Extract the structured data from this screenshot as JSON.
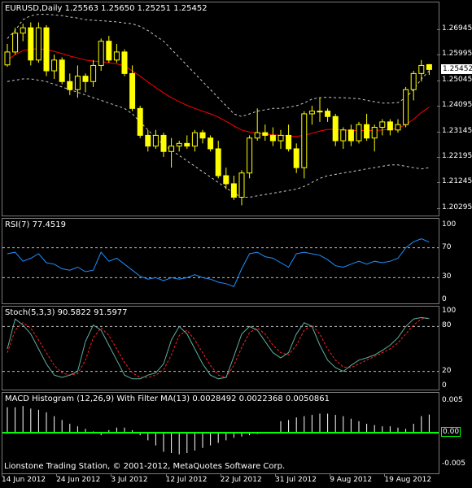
{
  "main": {
    "title": "EURUSD,Daily  1.25563 1.25650 1.25251 1.25452",
    "price_ticks": [
      "1.26945",
      "1.25995",
      "1.25045",
      "1.24095",
      "1.23145",
      "1.22195",
      "1.21245",
      "1.20295"
    ],
    "current_price": "1.25452"
  },
  "rsi": {
    "title": "RSI(7) 77.4519",
    "ticks": [
      "100",
      "70",
      "30",
      "0"
    ]
  },
  "stoch": {
    "title": "Stoch(5,3,3) 90.5822 91.5977",
    "ticks": [
      "100",
      "80",
      "20",
      "0"
    ]
  },
  "macd": {
    "title": "MACD Histogram (12,26,9) With Filter MA(13) 0.0028492 0.0022368 0.0050861",
    "ticks": [
      "0.005",
      "0.00",
      "-0.005"
    ]
  },
  "footer": "Lionstone Trading Station, © 2001-2012, MetaQuotes Software Corp.",
  "dates": [
    "14 Jun 2012",
    "24 Jun 2012",
    "3 Jul 2012",
    "12 Jul 2012",
    "22 Jul 2012",
    "31 Jul 2012",
    "9 Aug 2012",
    "19 Aug 2012"
  ],
  "colors": {
    "bg": "#000000",
    "candle": "#ffff00",
    "ma": "#ff0000",
    "bands": "#c8c8c8",
    "rsi": "#1e90ff",
    "stoch_main": "#5fb0a0",
    "stoch_signal": "#ff2020",
    "macd_hist": "#ffffff",
    "macd_zero": "#00ff00"
  },
  "chart_data": [
    {
      "type": "candlestick",
      "title": "EURUSD,Daily  1.25563 1.25650 1.25251 1.25452",
      "ylim": [
        1.202,
        1.277
      ],
      "x": [
        "14 Jun 2012",
        "24 Jun 2012",
        "3 Jul 2012",
        "12 Jul 2012",
        "22 Jul 2012",
        "31 Jul 2012",
        "9 Aug 2012",
        "19 Aug 2012"
      ],
      "ohlc": [
        [
          1.2562,
          1.264,
          1.2555,
          1.261
        ],
        [
          1.261,
          1.27,
          1.26,
          1.268
        ],
        [
          1.268,
          1.2715,
          1.265,
          1.27
        ],
        [
          1.27,
          1.272,
          1.256,
          1.258
        ],
        [
          1.258,
          1.272,
          1.257,
          1.27
        ],
        [
          1.27,
          1.271,
          1.252,
          1.254
        ],
        [
          1.254,
          1.26,
          1.251,
          1.258
        ],
        [
          1.258,
          1.259,
          1.249,
          1.25
        ],
        [
          1.25,
          1.253,
          1.245,
          1.247
        ],
        [
          1.247,
          1.256,
          1.244,
          1.252
        ],
        [
          1.252,
          1.253,
          1.246,
          1.25
        ],
        [
          1.25,
          1.258,
          1.248,
          1.256
        ],
        [
          1.256,
          1.266,
          1.254,
          1.265
        ],
        [
          1.265,
          1.267,
          1.257,
          1.258
        ],
        [
          1.258,
          1.264,
          1.257,
          1.261
        ],
        [
          1.261,
          1.262,
          1.252,
          1.253
        ],
        [
          1.253,
          1.256,
          1.239,
          1.24
        ],
        [
          1.24,
          1.241,
          1.229,
          1.23
        ],
        [
          1.23,
          1.232,
          1.224,
          1.226
        ],
        [
          1.226,
          1.232,
          1.225,
          1.23
        ],
        [
          1.23,
          1.231,
          1.222,
          1.224
        ],
        [
          1.224,
          1.229,
          1.218,
          1.226
        ],
        [
          1.226,
          1.228,
          1.224,
          1.227
        ],
        [
          1.227,
          1.23,
          1.225,
          1.226
        ],
        [
          1.226,
          1.232,
          1.224,
          1.231
        ],
        [
          1.231,
          1.232,
          1.227,
          1.229
        ],
        [
          1.229,
          1.23,
          1.224,
          1.225
        ],
        [
          1.225,
          1.228,
          1.214,
          1.215
        ],
        [
          1.215,
          1.218,
          1.21,
          1.212
        ],
        [
          1.212,
          1.215,
          1.206,
          1.207
        ],
        [
          1.207,
          1.217,
          1.204,
          1.216
        ],
        [
          1.216,
          1.23,
          1.214,
          1.229
        ],
        [
          1.229,
          1.24,
          1.228,
          1.231
        ],
        [
          1.231,
          1.234,
          1.228,
          1.23
        ],
        [
          1.23,
          1.233,
          1.226,
          1.228
        ],
        [
          1.228,
          1.232,
          1.225,
          1.23
        ],
        [
          1.23,
          1.234,
          1.224,
          1.225
        ],
        [
          1.225,
          1.227,
          1.216,
          1.218
        ],
        [
          1.218,
          1.239,
          1.214,
          1.238
        ],
        [
          1.238,
          1.241,
          1.234,
          1.239
        ],
        [
          1.239,
          1.244,
          1.235,
          1.239
        ],
        [
          1.239,
          1.24,
          1.235,
          1.237
        ],
        [
          1.237,
          1.238,
          1.226,
          1.228
        ],
        [
          1.228,
          1.233,
          1.225,
          1.232
        ],
        [
          1.232,
          1.234,
          1.226,
          1.228
        ],
        [
          1.228,
          1.235,
          1.227,
          1.234
        ],
        [
          1.234,
          1.238,
          1.228,
          1.229
        ],
        [
          1.229,
          1.234,
          1.224,
          1.233
        ],
        [
          1.233,
          1.236,
          1.23,
          1.235
        ],
        [
          1.235,
          1.236,
          1.23,
          1.232
        ],
        [
          1.232,
          1.236,
          1.231,
          1.234
        ],
        [
          1.234,
          1.248,
          1.233,
          1.247
        ],
        [
          1.247,
          1.254,
          1.243,
          1.253
        ],
        [
          1.253,
          1.258,
          1.25,
          1.256
        ],
        [
          1.2563,
          1.2565,
          1.2525,
          1.2545
        ]
      ],
      "ma": [
        1.258,
        1.26,
        1.2615,
        1.262,
        1.2622,
        1.2618,
        1.2612,
        1.2604,
        1.2595,
        1.2588,
        1.258,
        1.2576,
        1.2574,
        1.257,
        1.2566,
        1.2558,
        1.254,
        1.252,
        1.2498,
        1.2478,
        1.2458,
        1.244,
        1.2425,
        1.2412,
        1.24,
        1.239,
        1.238,
        1.2368,
        1.2352,
        1.2335,
        1.232,
        1.2312,
        1.2308,
        1.2305,
        1.2302,
        1.23,
        1.2298,
        1.2296,
        1.23,
        1.2308,
        1.2316,
        1.2322,
        1.2322,
        1.232,
        1.2318,
        1.2318,
        1.2318,
        1.2318,
        1.232,
        1.2322,
        1.2326,
        1.234,
        1.236,
        1.2385,
        1.2405
      ],
      "band_upper": [
        1.266,
        1.269,
        1.273,
        1.2745,
        1.275,
        1.275,
        1.2748,
        1.2745,
        1.274,
        1.2736,
        1.273,
        1.2728,
        1.2726,
        1.2724,
        1.2722,
        1.2718,
        1.2715,
        1.2705,
        1.269,
        1.267,
        1.265,
        1.262,
        1.259,
        1.256,
        1.253,
        1.25,
        1.247,
        1.244,
        1.241,
        1.238,
        1.237,
        1.238,
        1.239,
        1.2395,
        1.24,
        1.24,
        1.2405,
        1.241,
        1.242,
        1.2435,
        1.244,
        1.2442,
        1.244,
        1.244,
        1.2438,
        1.2436,
        1.243,
        1.2425,
        1.242,
        1.242,
        1.2422,
        1.244,
        1.247,
        1.251,
        1.254
      ],
      "band_lower": [
        1.25,
        1.2505,
        1.251,
        1.251,
        1.2505,
        1.25,
        1.249,
        1.248,
        1.247,
        1.246,
        1.245,
        1.244,
        1.243,
        1.242,
        1.241,
        1.24,
        1.238,
        1.235,
        1.232,
        1.229,
        1.2265,
        1.2245,
        1.2225,
        1.2205,
        1.2185,
        1.2165,
        1.2145,
        1.2125,
        1.2105,
        1.2085,
        1.207,
        1.207,
        1.2075,
        1.208,
        1.2085,
        1.209,
        1.2095,
        1.21,
        1.211,
        1.2125,
        1.214,
        1.215,
        1.2155,
        1.216,
        1.2165,
        1.217,
        1.2175,
        1.218,
        1.2185,
        1.219,
        1.219,
        1.2185,
        1.218,
        1.2175,
        1.218
      ]
    },
    {
      "type": "line",
      "title": "RSI(7) 77.4519",
      "ylim": [
        0,
        100
      ],
      "levels": [
        70,
        30
      ],
      "values": [
        62,
        64,
        52,
        56,
        62,
        50,
        48,
        42,
        40,
        44,
        38,
        40,
        64,
        52,
        56,
        48,
        40,
        32,
        28,
        30,
        26,
        30,
        28,
        30,
        34,
        30,
        28,
        24,
        22,
        18,
        42,
        62,
        64,
        58,
        56,
        50,
        44,
        62,
        64,
        62,
        60,
        54,
        46,
        44,
        48,
        52,
        48,
        52,
        50,
        52,
        56,
        70,
        78,
        82,
        77.4519
      ]
    },
    {
      "type": "line",
      "title": "Stoch(5,3,3) 90.5822 91.5977",
      "ylim": [
        0,
        100
      ],
      "levels": [
        80,
        20
      ],
      "series": [
        {
          "values": [
            50,
            90,
            82,
            70,
            50,
            30,
            15,
            12,
            15,
            20,
            60,
            82,
            75,
            55,
            35,
            15,
            10,
            10,
            15,
            18,
            30,
            62,
            80,
            70,
            50,
            30,
            15,
            10,
            12,
            40,
            70,
            80,
            75,
            60,
            45,
            38,
            45,
            70,
            85,
            80,
            55,
            35,
            25,
            20,
            28,
            35,
            38,
            42,
            48,
            55,
            65,
            80,
            90,
            92,
            90.5822
          ]
        },
        {
          "values": [
            45,
            75,
            85,
            78,
            62,
            45,
            28,
            18,
            15,
            17,
            35,
            65,
            78,
            68,
            50,
            32,
            18,
            12,
            12,
            15,
            22,
            42,
            68,
            75,
            62,
            45,
            28,
            15,
            12,
            28,
            52,
            72,
            78,
            70,
            55,
            45,
            42,
            55,
            75,
            82,
            70,
            50,
            35,
            26,
            25,
            30,
            35,
            40,
            45,
            50,
            58,
            70,
            82,
            90,
            91.5977
          ]
        }
      ]
    },
    {
      "type": "bar",
      "title": "MACD Histogram (12,26,9) With Filter MA(13) 0.0028492 0.0022368 0.0050861",
      "ylim": [
        -0.0055,
        0.0055
      ],
      "values": [
        0.004,
        0.004,
        0.0042,
        0.0038,
        0.0036,
        0.0032,
        0.0026,
        0.002,
        0.0014,
        0.001,
        0.0006,
        0.0002,
        -0.0004,
        0.0004,
        0.0008,
        0.0008,
        0.0004,
        -0.0004,
        -0.0012,
        -0.002,
        -0.003,
        -0.0032,
        -0.0034,
        -0.0032,
        -0.0028,
        -0.0024,
        -0.002,
        -0.0016,
        -0.0012,
        -0.0008,
        -0.0006,
        -0.0004,
        -0.0002,
        -0.0001,
        -0.0001,
        0.0018,
        0.002,
        0.0024,
        0.0026,
        0.0028,
        0.003,
        0.003,
        0.0028,
        0.0026,
        0.0022,
        0.0018,
        0.0014,
        0.0012,
        0.001,
        0.001,
        0.0008,
        0.0006,
        0.0014,
        0.0026,
        0.0028492
      ]
    }
  ]
}
